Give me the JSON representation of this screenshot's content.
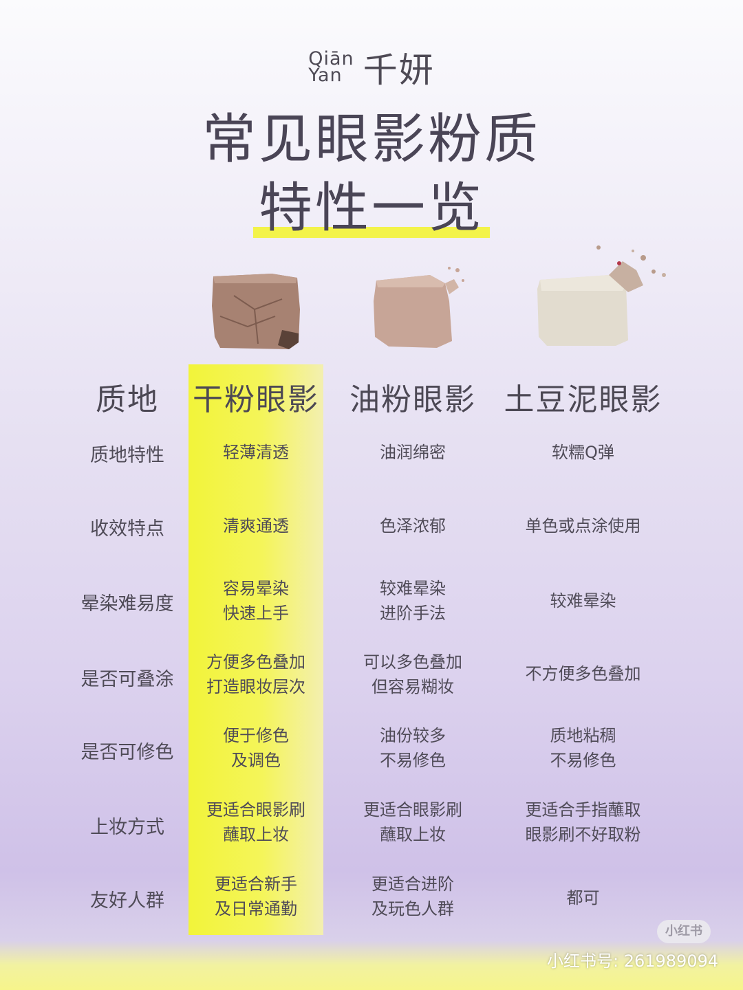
{
  "brand": {
    "latin_line1": "Qiān",
    "latin_line2": "Yan",
    "chinese": "千妍"
  },
  "title": {
    "line1": "常见眼影粉质",
    "line2": "特性一览"
  },
  "colors": {
    "highlight": "#f2f43a",
    "text": "#4a4650"
  },
  "table": {
    "corner_header": "质地",
    "columns": [
      "干粉眼影",
      "油粉眼影",
      "土豆泥眼影"
    ],
    "rows": [
      {
        "label": "质地特性",
        "cells": [
          "轻薄清透",
          "油润绵密",
          "软糯Q弹"
        ]
      },
      {
        "label": "收效特点",
        "cells": [
          "清爽通透",
          "色泽浓郁",
          "单色或点涂使用"
        ]
      },
      {
        "label": "晕染难易度",
        "cells": [
          "容易晕染\n快速上手",
          "较难晕染\n进阶手法",
          "较难晕染"
        ]
      },
      {
        "label": "是否可叠涂",
        "cells": [
          "方便多色叠加\n打造眼妆层次",
          "可以多色叠加\n但容易糊妆",
          "不方便多色叠加"
        ]
      },
      {
        "label": "是否可修色",
        "cells": [
          "便于修色\n及调色",
          "油份较多\n不易修色",
          "质地粘稠\n不易修色"
        ]
      },
      {
        "label": "上妆方式",
        "cells": [
          "更适合眼影刷\n蘸取上妆",
          "更适合眼影刷\n蘸取上妆",
          "更适合手指蘸取\n眼影刷不好取粉"
        ]
      },
      {
        "label": "友好人群",
        "cells": [
          "更适合新手\n及日常通勤",
          "更适合进阶\n及玩色人群",
          "都可"
        ]
      }
    ]
  },
  "footer": {
    "badge": "小红书",
    "watermark": "小红书号: 261989094"
  }
}
